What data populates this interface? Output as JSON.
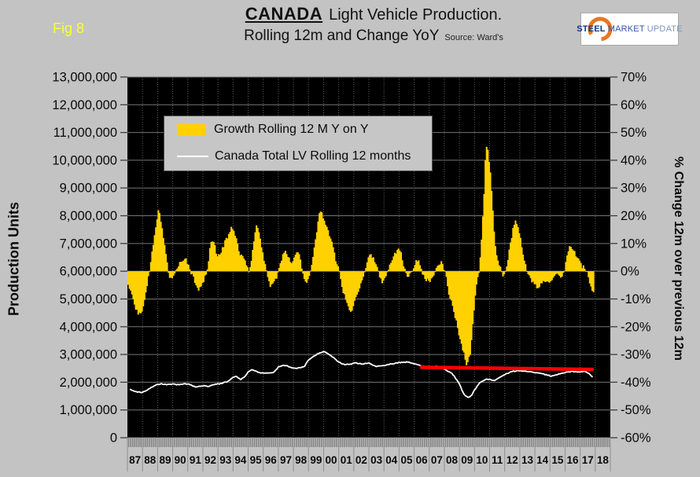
{
  "figure": {
    "fig_label": "Fig 8",
    "title_main": "CANADA",
    "title_rest": "Light Vehicle Production.",
    "subtitle": "Rolling 12m and Change YoY",
    "source": "Source: Ward's"
  },
  "logo": {
    "word1": "STEEL",
    "word2": "MARKET",
    "word3": "UPDATE"
  },
  "legend": {
    "items": [
      {
        "label": "Growth Rolling 12 M Y on Y",
        "swatch": "bar",
        "color": "#ffd100"
      },
      {
        "label": "Canada Total LV Rolling 12 months",
        "swatch": "line",
        "color": "#ffffff"
      }
    ]
  },
  "axes": {
    "left_title": "Production Units",
    "right_title": "% Change 12m over previous 12m",
    "left_ticks": [
      "13,000,000",
      "12,000,000",
      "11,000,000",
      "10,000,000",
      "9,000,000",
      "8,000,000",
      "7,000,000",
      "6,000,000",
      "5,000,000",
      "4,000,000",
      "3,000,000",
      "2,000,000",
      "1,000,000",
      "0"
    ],
    "right_ticks": [
      "70%",
      "60%",
      "50%",
      "40%",
      "30%",
      "20%",
      "10%",
      "0%",
      "-10%",
      "-20%",
      "-30%",
      "-40%",
      "-50%",
      "-60%"
    ],
    "x_ticks": [
      "87",
      "88",
      "89",
      "90",
      "91",
      "92",
      "93",
      "94",
      "95",
      "96",
      "97",
      "98",
      "99",
      "00",
      "01",
      "02",
      "03",
      "04",
      "05",
      "06",
      "07",
      "08",
      "09",
      "10",
      "11",
      "12",
      "13",
      "14",
      "15",
      "16",
      "17",
      "18"
    ]
  },
  "colors": {
    "background": "#c3c3c3",
    "plot_bg": "#000000",
    "bar": "#ffd100",
    "line": "#ffffff",
    "trend": "#ff0000",
    "grid": "#757575",
    "tick": "#3c3c3c"
  },
  "chart_data": {
    "type": "combo",
    "title": "CANADA Light Vehicle Production. Rolling 12m and Change YoY",
    "x_note": "x axis = calendar years, 87 (1987) through 18 (2018), monthly resolution",
    "left_axis": {
      "label": "Production Units",
      "range": [
        0,
        13000000
      ],
      "tick_step": 1000000
    },
    "right_axis": {
      "label": "% Change 12m over previous 12m",
      "range": [
        -60,
        70
      ],
      "tick_step": 10,
      "unit": "%"
    },
    "grid": true,
    "legend_position": "inside-top-left",
    "series": [
      {
        "name": "Growth Rolling 12 M Y on Y",
        "type": "bar",
        "axis": "right",
        "color": "#ffd100",
        "unit": "% change 12m over previous 12m",
        "anchors": [
          [
            1987.0,
            -4
          ],
          [
            1987.3,
            -9
          ],
          [
            1987.7,
            -16
          ],
          [
            1988.0,
            -14
          ],
          [
            1988.45,
            0
          ],
          [
            1988.7,
            10
          ],
          [
            1989.05,
            22.5
          ],
          [
            1989.3,
            15
          ],
          [
            1989.5,
            8
          ],
          [
            1989.7,
            0
          ],
          [
            1989.85,
            -3
          ],
          [
            1990.1,
            -1
          ],
          [
            1990.35,
            1
          ],
          [
            1990.55,
            4
          ],
          [
            1990.9,
            4
          ],
          [
            1991.1,
            1
          ],
          [
            1991.4,
            -3
          ],
          [
            1991.75,
            -7
          ],
          [
            1992.0,
            -4
          ],
          [
            1992.3,
            0
          ],
          [
            1992.5,
            10
          ],
          [
            1992.7,
            11
          ],
          [
            1992.97,
            5
          ],
          [
            1993.2,
            7
          ],
          [
            1993.5,
            11
          ],
          [
            1993.9,
            15.5
          ],
          [
            1994.1,
            14
          ],
          [
            1994.45,
            6
          ],
          [
            1994.7,
            5
          ],
          [
            1994.9,
            1
          ],
          [
            1995.1,
            0
          ],
          [
            1995.35,
            10
          ],
          [
            1995.55,
            17
          ],
          [
            1995.8,
            12
          ],
          [
            1996.0,
            5
          ],
          [
            1996.2,
            0
          ],
          [
            1996.45,
            -5
          ],
          [
            1996.7,
            -4
          ],
          [
            1996.9,
            -2
          ],
          [
            1997.1,
            2
          ],
          [
            1997.35,
            7
          ],
          [
            1997.6,
            6
          ],
          [
            1997.9,
            3
          ],
          [
            1998.1,
            6
          ],
          [
            1998.35,
            7
          ],
          [
            1998.6,
            0
          ],
          [
            1998.8,
            -4
          ],
          [
            1999.05,
            -2
          ],
          [
            1999.3,
            5
          ],
          [
            1999.55,
            15
          ],
          [
            1999.75,
            22
          ],
          [
            1999.95,
            20
          ],
          [
            2000.3,
            14
          ],
          [
            2000.6,
            9
          ],
          [
            2000.85,
            3
          ],
          [
            2001.05,
            0
          ],
          [
            2001.3,
            -8
          ],
          [
            2001.8,
            -15
          ],
          [
            2002.1,
            -10
          ],
          [
            2002.4,
            -5
          ],
          [
            2002.7,
            0
          ],
          [
            2003.1,
            7
          ],
          [
            2003.4,
            3
          ],
          [
            2003.6,
            0
          ],
          [
            2003.9,
            -4.5
          ],
          [
            2004.2,
            0
          ],
          [
            2004.5,
            4
          ],
          [
            2004.75,
            7
          ],
          [
            2005.05,
            8
          ],
          [
            2005.3,
            2
          ],
          [
            2005.6,
            -2
          ],
          [
            2005.9,
            1
          ],
          [
            2006.25,
            4.5
          ],
          [
            2006.5,
            0
          ],
          [
            2006.8,
            -3
          ],
          [
            2007.0,
            -4
          ],
          [
            2007.2,
            -2
          ],
          [
            2007.5,
            1
          ],
          [
            2007.8,
            3
          ],
          [
            2008.05,
            0
          ],
          [
            2008.3,
            -8
          ],
          [
            2008.6,
            -14
          ],
          [
            2008.9,
            -21
          ],
          [
            2009.2,
            -28
          ],
          [
            2009.5,
            -34
          ],
          [
            2009.7,
            -30
          ],
          [
            2009.9,
            -18
          ],
          [
            2010.1,
            -5
          ],
          [
            2010.3,
            0
          ],
          [
            2010.45,
            10
          ],
          [
            2010.6,
            25
          ],
          [
            2010.75,
            45
          ],
          [
            2010.9,
            43
          ],
          [
            2011.05,
            35
          ],
          [
            2011.2,
            22
          ],
          [
            2011.35,
            10
          ],
          [
            2011.5,
            4
          ],
          [
            2011.7,
            1
          ],
          [
            2011.85,
            -1.5
          ],
          [
            2012.0,
            -1
          ],
          [
            2012.15,
            2
          ],
          [
            2012.3,
            8
          ],
          [
            2012.5,
            14
          ],
          [
            2012.7,
            18
          ],
          [
            2012.9,
            16
          ],
          [
            2013.1,
            10
          ],
          [
            2013.3,
            4
          ],
          [
            2013.45,
            0
          ],
          [
            2013.7,
            -3
          ],
          [
            2014.15,
            -6
          ],
          [
            2014.5,
            -4
          ],
          [
            2014.8,
            -3
          ],
          [
            2015.1,
            -4
          ],
          [
            2015.45,
            -1
          ],
          [
            2015.7,
            -3
          ],
          [
            2015.9,
            -1
          ],
          [
            2016.1,
            5
          ],
          [
            2016.3,
            9
          ],
          [
            2016.5,
            8
          ],
          [
            2016.7,
            6
          ],
          [
            2016.9,
            4
          ],
          [
            2017.1,
            2
          ],
          [
            2017.45,
            0
          ],
          [
            2017.6,
            -4
          ],
          [
            2017.8,
            -7
          ],
          [
            2017.95,
            -9
          ]
        ]
      },
      {
        "name": "Canada Total LV Rolling 12 months",
        "type": "line",
        "axis": "left",
        "color": "#ffffff",
        "unit": "vehicles (rolling 12 months)",
        "anchors": [
          [
            1987.1,
            1760000
          ],
          [
            1987.5,
            1680000
          ],
          [
            1987.9,
            1620000
          ],
          [
            1988.3,
            1720000
          ],
          [
            1988.8,
            1880000
          ],
          [
            1989.2,
            1940000
          ],
          [
            1989.6,
            1920000
          ],
          [
            1990.0,
            1930000
          ],
          [
            1990.4,
            1910000
          ],
          [
            1990.8,
            1950000
          ],
          [
            1991.1,
            1920000
          ],
          [
            1991.5,
            1830000
          ],
          [
            1991.8,
            1850000
          ],
          [
            1992.1,
            1880000
          ],
          [
            1992.4,
            1850000
          ],
          [
            1992.8,
            1930000
          ],
          [
            1993.2,
            1950000
          ],
          [
            1993.6,
            2020000
          ],
          [
            1994.0,
            2170000
          ],
          [
            1994.2,
            2230000
          ],
          [
            1994.5,
            2100000
          ],
          [
            1994.8,
            2200000
          ],
          [
            1995.0,
            2380000
          ],
          [
            1995.3,
            2450000
          ],
          [
            1995.6,
            2380000
          ],
          [
            1995.9,
            2330000
          ],
          [
            1996.3,
            2340000
          ],
          [
            1996.7,
            2360000
          ],
          [
            1997.0,
            2550000
          ],
          [
            1997.3,
            2600000
          ],
          [
            1997.6,
            2580000
          ],
          [
            1998.0,
            2500000
          ],
          [
            1998.4,
            2520000
          ],
          [
            1998.7,
            2550000
          ],
          [
            1999.0,
            2810000
          ],
          [
            1999.4,
            2950000
          ],
          [
            1999.8,
            3080000
          ],
          [
            2000.1,
            3100000
          ],
          [
            2000.5,
            2950000
          ],
          [
            2001.0,
            2730000
          ],
          [
            2001.4,
            2630000
          ],
          [
            2001.8,
            2650000
          ],
          [
            2002.1,
            2700000
          ],
          [
            2002.5,
            2660000
          ],
          [
            2003.0,
            2690000
          ],
          [
            2003.5,
            2570000
          ],
          [
            2004.0,
            2610000
          ],
          [
            2004.5,
            2660000
          ],
          [
            2005.0,
            2710000
          ],
          [
            2005.6,
            2730000
          ],
          [
            2006.0,
            2660000
          ],
          [
            2006.5,
            2590000
          ],
          [
            2007.0,
            2540000
          ],
          [
            2007.5,
            2570000
          ],
          [
            2008.0,
            2470000
          ],
          [
            2008.5,
            2330000
          ],
          [
            2009.0,
            1950000
          ],
          [
            2009.3,
            1550000
          ],
          [
            2009.55,
            1450000
          ],
          [
            2009.8,
            1520000
          ],
          [
            2010.0,
            1710000
          ],
          [
            2010.3,
            1950000
          ],
          [
            2010.7,
            2090000
          ],
          [
            2011.0,
            2110000
          ],
          [
            2011.3,
            2060000
          ],
          [
            2011.7,
            2170000
          ],
          [
            2012.0,
            2280000
          ],
          [
            2012.5,
            2390000
          ],
          [
            2013.0,
            2420000
          ],
          [
            2013.5,
            2390000
          ],
          [
            2014.0,
            2350000
          ],
          [
            2014.5,
            2300000
          ],
          [
            2015.1,
            2220000
          ],
          [
            2015.5,
            2280000
          ],
          [
            2016.0,
            2350000
          ],
          [
            2016.5,
            2390000
          ],
          [
            2017.0,
            2370000
          ],
          [
            2017.3,
            2400000
          ],
          [
            2017.6,
            2300000
          ],
          [
            2017.9,
            2150000
          ]
        ]
      },
      {
        "name": "trend line (red)",
        "type": "line",
        "axis": "left",
        "color": "#ff0000",
        "unit": "vehicles (rolling 12 months)",
        "anchors": [
          [
            2006.4,
            2540000
          ],
          [
            2017.9,
            2460000
          ]
        ]
      }
    ]
  }
}
